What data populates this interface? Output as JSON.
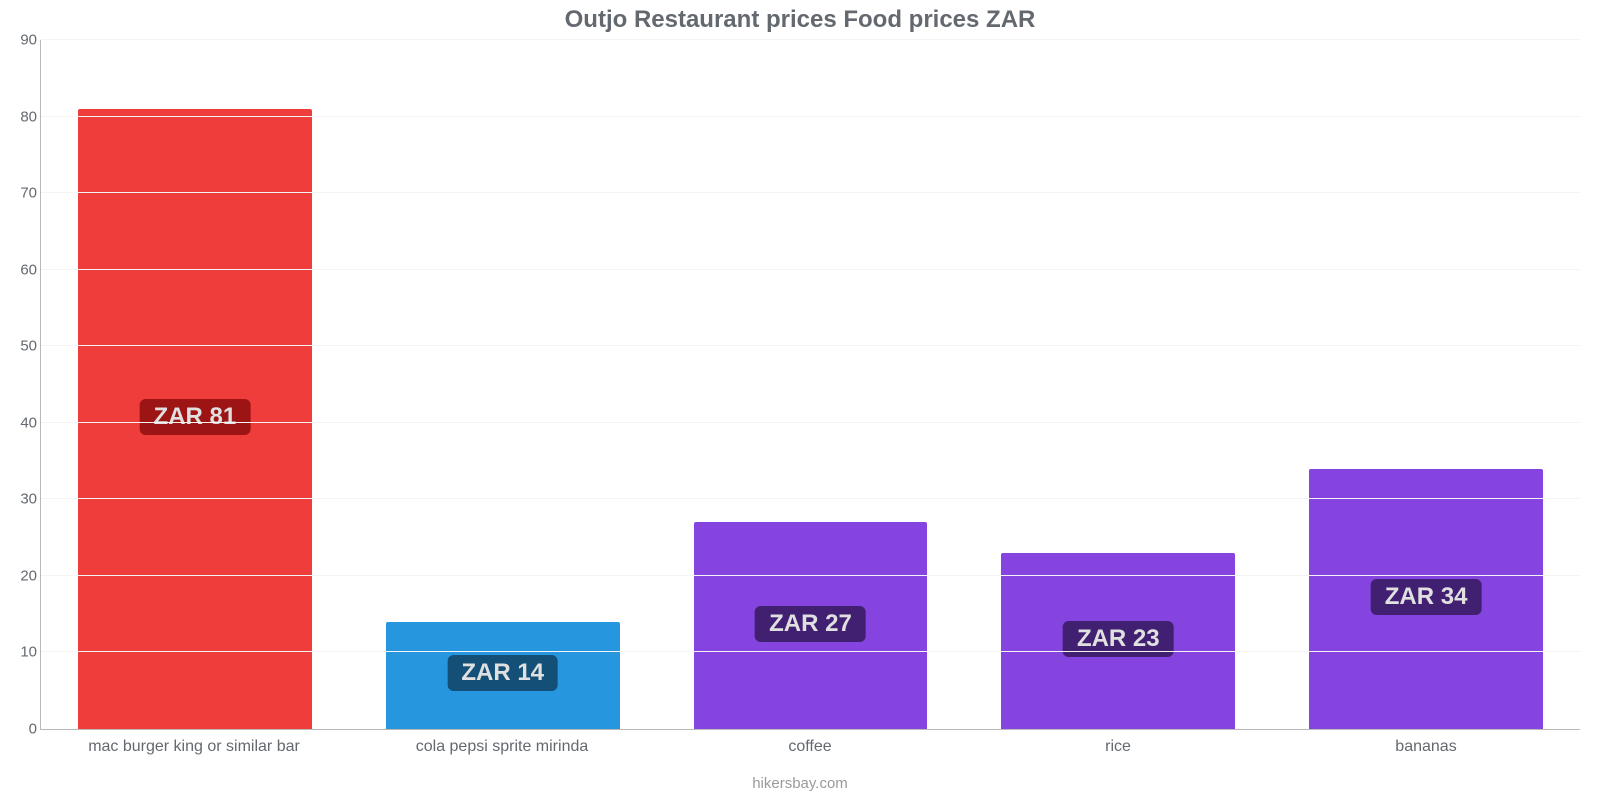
{
  "chart": {
    "type": "bar",
    "title": "Outjo Restaurant prices Food prices ZAR",
    "title_fontsize": 24,
    "title_color": "#646970",
    "background_color": "#ffffff",
    "grid_color": "#f4f4f4",
    "axis_color": "#b9b9b9",
    "label_color": "#646970",
    "label_fontsize": 16,
    "ylim": [
      0,
      90
    ],
    "ytick_step": 10,
    "bar_width_pct": 76,
    "badge_fontsize": 24,
    "badge_text_color": "#e0e0e0",
    "categories": [
      "mac burger king or similar bar",
      "cola pepsi sprite mirinda",
      "coffee",
      "rice",
      "bananas"
    ],
    "values": [
      81,
      14,
      27,
      23,
      34
    ],
    "value_labels": [
      "ZAR 81",
      "ZAR 14",
      "ZAR 27",
      "ZAR 23",
      "ZAR 34"
    ],
    "bar_colors": [
      "#ef3d3c",
      "#2697de",
      "#8543e0",
      "#8543e0",
      "#8543e0"
    ],
    "badge_colors": [
      "#9c1414",
      "#134f77",
      "#412072",
      "#412072",
      "#412072"
    ],
    "yticks": [
      {
        "v": 0,
        "label": "0"
      },
      {
        "v": 10,
        "label": "10"
      },
      {
        "v": 20,
        "label": "20"
      },
      {
        "v": 30,
        "label": "30"
      },
      {
        "v": 40,
        "label": "40"
      },
      {
        "v": 50,
        "label": "50"
      },
      {
        "v": 60,
        "label": "60"
      },
      {
        "v": 70,
        "label": "70"
      },
      {
        "v": 80,
        "label": "80"
      },
      {
        "v": 90,
        "label": "90"
      }
    ],
    "credit": "hikersbay.com",
    "credit_color": "#9a9a9a"
  }
}
